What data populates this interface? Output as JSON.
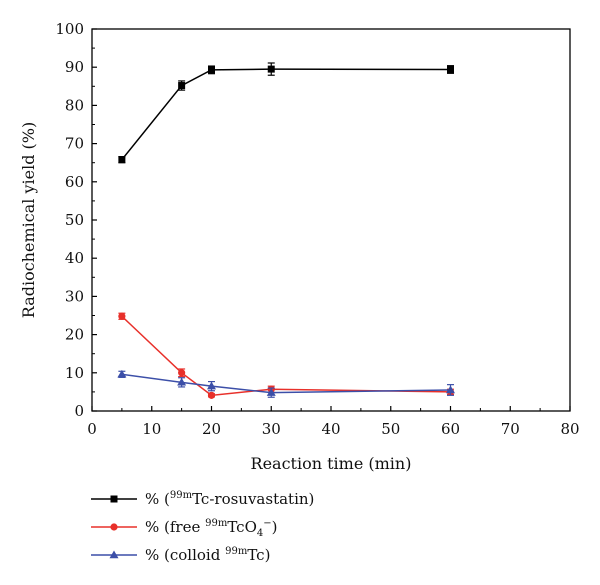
{
  "chart_data": {
    "type": "line",
    "xlabel": "Reaction time (min)",
    "ylabel": "Radiochemical yield (%)",
    "xlim": [
      0,
      80
    ],
    "ylim": [
      0,
      100
    ],
    "xticks": [
      0,
      10,
      20,
      30,
      40,
      50,
      60,
      70,
      80
    ],
    "yticks": [
      0,
      10,
      20,
      30,
      40,
      50,
      60,
      70,
      80,
      90,
      100
    ],
    "x": [
      5,
      15,
      20,
      30,
      60
    ],
    "grid": false,
    "legend_position": "bottom-left, below plot",
    "series": [
      {
        "name": "% (99mTc-rosuvastatin)",
        "legend": {
          "prefix": "% (",
          "sup": "99m",
          "main": "Tc-rosuvastatin)",
          "sub": "",
          "supTail": "",
          "tail": ""
        },
        "color": "#000000",
        "marker": "square",
        "values": [
          65.8,
          85.2,
          89.3,
          89.5,
          89.4
        ],
        "errors": [
          0.8,
          1.2,
          1.0,
          1.6,
          1.0
        ]
      },
      {
        "name": "% (free 99mTcO4−)",
        "legend": {
          "prefix": "% (free ",
          "sup": "99m",
          "main": "TcO",
          "sub": "4",
          "supTail": "−",
          "tail": ")"
        },
        "color": "#e8302a",
        "marker": "circle",
        "values": [
          24.8,
          10.0,
          4.1,
          5.7,
          5.0
        ],
        "errors": [
          0.8,
          1.0,
          0.4,
          0.8,
          0.7
        ]
      },
      {
        "name": "% (colloid 99mTc)",
        "legend": {
          "prefix": "% (colloid ",
          "sup": "99m",
          "main": "Tc)",
          "sub": "",
          "supTail": "",
          "tail": ""
        },
        "color": "#3c4fa8",
        "marker": "triangle",
        "values": [
          9.6,
          7.5,
          6.5,
          4.8,
          5.5
        ],
        "errors": [
          0.8,
          1.2,
          1.2,
          1.2,
          1.4
        ]
      }
    ]
  }
}
